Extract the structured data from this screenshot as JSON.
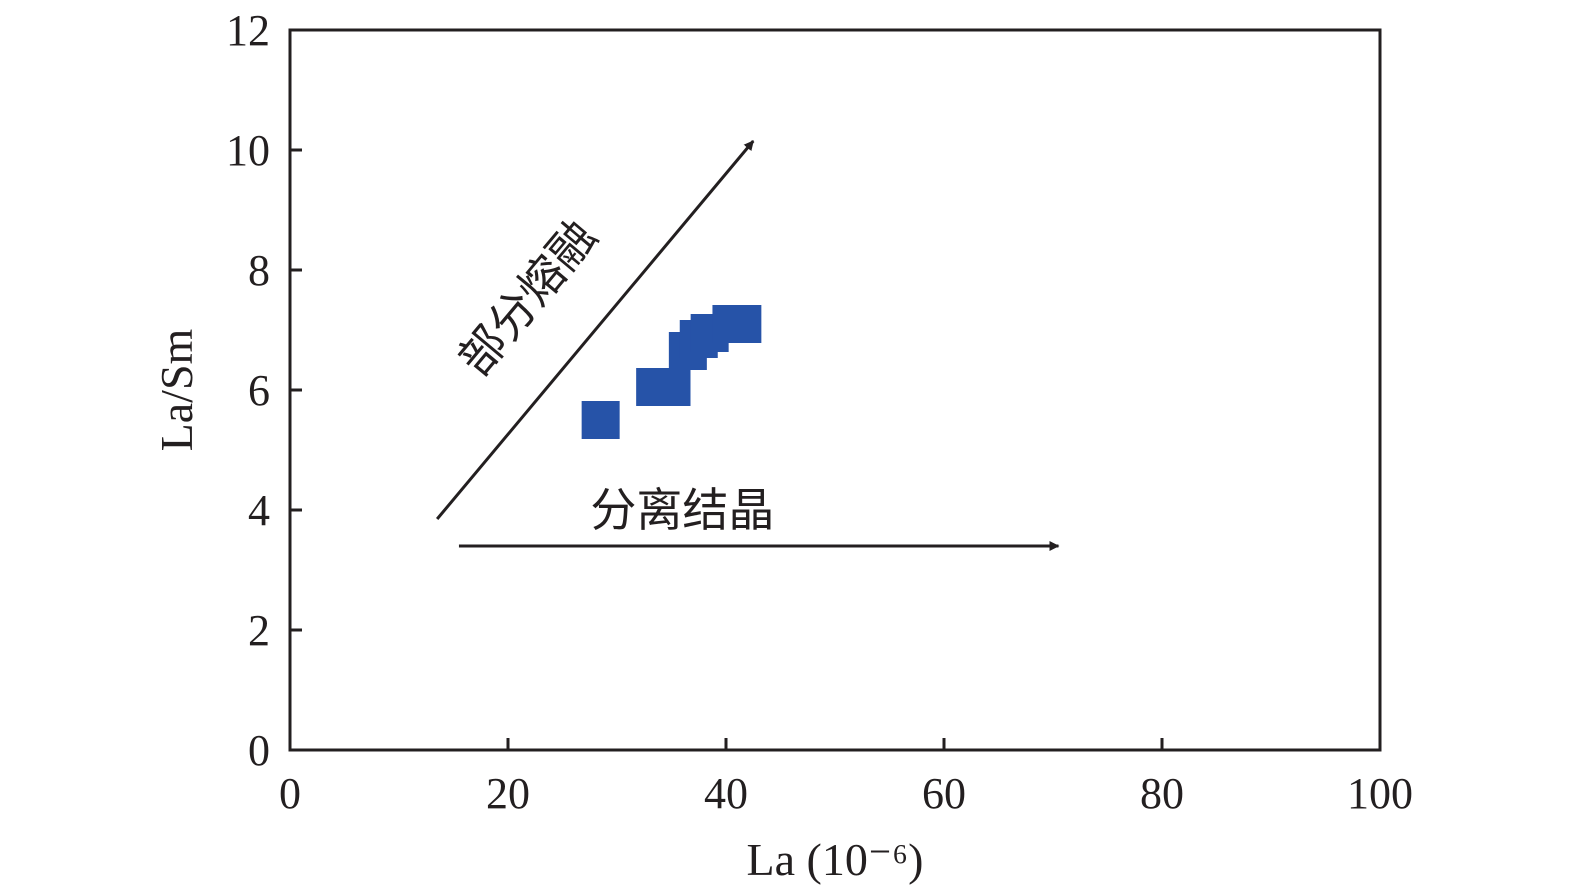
{
  "chart_data": {
    "type": "scatter",
    "title": "",
    "xlabel": "La (10⁻⁶)",
    "ylabel": "La/Sm",
    "xlim": [
      0,
      100
    ],
    "ylim": [
      0,
      12
    ],
    "xticks": [
      0,
      20,
      40,
      60,
      80,
      100
    ],
    "yticks": [
      0,
      2,
      4,
      6,
      8,
      10,
      12
    ],
    "grid": false,
    "marker": "square",
    "marker_color": "#2653a8",
    "axis_color": "#231f20",
    "series": [
      {
        "points": [
          {
            "x": 28.5,
            "y": 5.5
          },
          {
            "x": 33.5,
            "y": 6.05
          },
          {
            "x": 35.0,
            "y": 6.05
          },
          {
            "x": 36.5,
            "y": 6.65
          },
          {
            "x": 37.5,
            "y": 6.85
          },
          {
            "x": 38.5,
            "y": 6.95
          },
          {
            "x": 40.5,
            "y": 7.1
          },
          {
            "x": 41.5,
            "y": 7.1
          }
        ]
      }
    ],
    "annotations": [
      {
        "text": "部分熔融",
        "from": {
          "x": 13.5,
          "y": 3.85
        },
        "to": {
          "x": 42.5,
          "y": 10.15
        }
      },
      {
        "text": "分离结晶",
        "from": {
          "x": 15.5,
          "y": 3.4
        },
        "to": {
          "x": 70.5,
          "y": 3.4
        }
      }
    ]
  }
}
